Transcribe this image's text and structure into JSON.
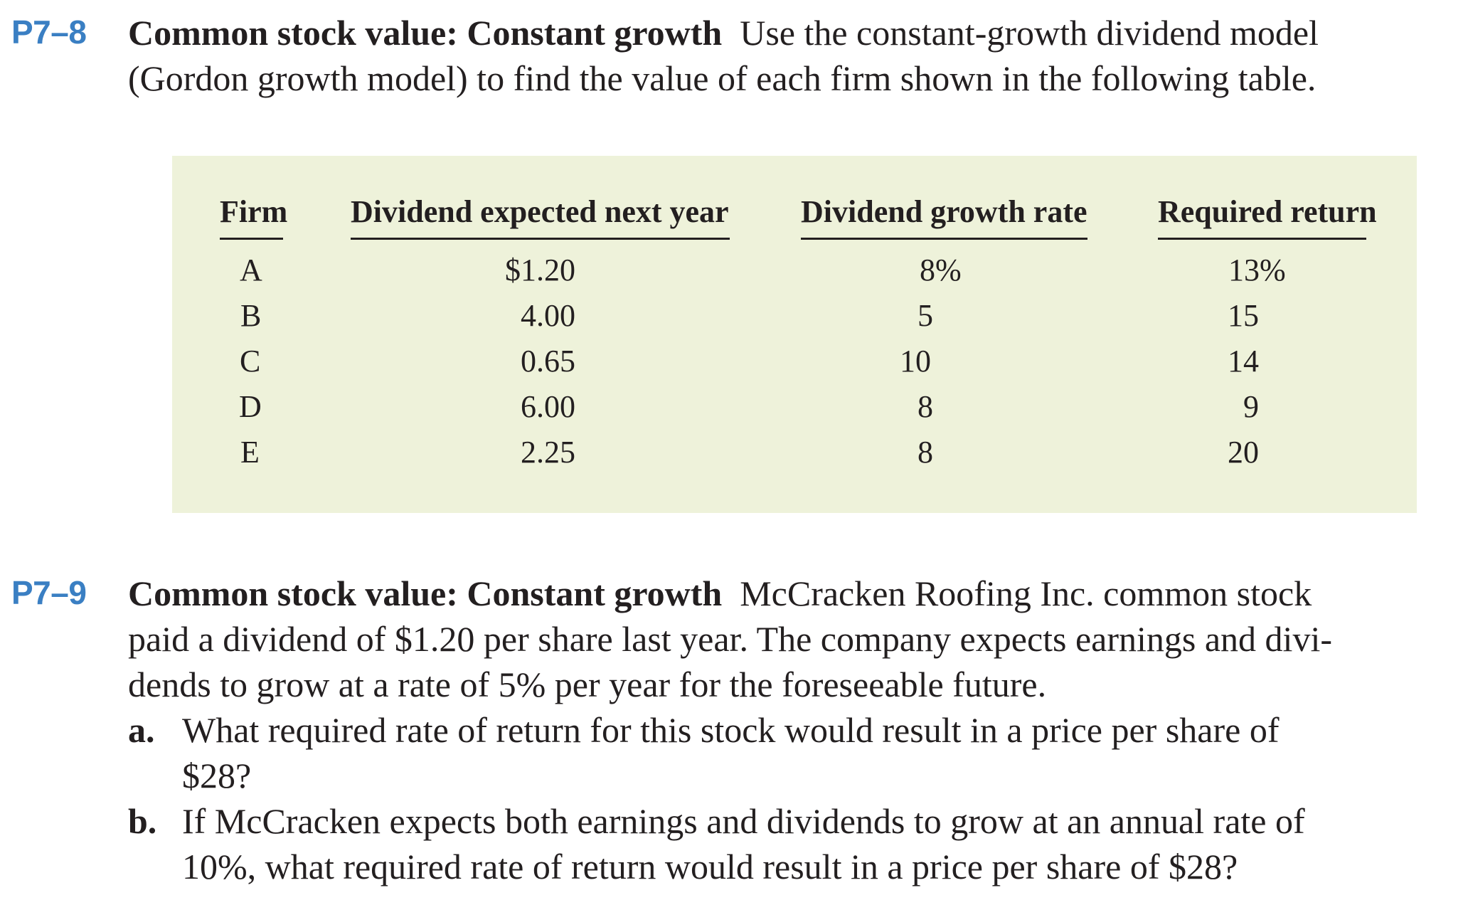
{
  "p78": {
    "number": "P7–8",
    "title": "Common stock value: Constant growth",
    "lines": [
      "Use the constant-growth dividend model",
      "(Gordon growth model) to find the value of each firm shown in the following table."
    ],
    "table": {
      "headers": [
        "Firm",
        "Dividend expected next year",
        "Dividend growth rate",
        "Required return"
      ],
      "rows": [
        [
          "A",
          "$1.20",
          "8%",
          "13%"
        ],
        [
          "B",
          "4.00",
          "5",
          "15"
        ],
        [
          "C",
          "0.65",
          "10",
          "14"
        ],
        [
          "D",
          "6.00",
          "8",
          "9"
        ],
        [
          "E",
          "2.25",
          "8",
          "20"
        ]
      ],
      "background": "#eef2da"
    }
  },
  "p79": {
    "number": "P7–9",
    "title": "Common stock value: Constant growth",
    "lines": [
      "McCracken Roofing Inc. common stock",
      "paid a dividend of $1.20 per share last year. The company expects earnings and divi-",
      "dends to grow at a rate of 5% per year for the foreseeable future."
    ],
    "questions": [
      {
        "letter": "a.",
        "lines": [
          "What required rate of return for this stock would result in a price per share of",
          "$28?"
        ]
      },
      {
        "letter": "b.",
        "lines": [
          "If McCracken expects both earnings and dividends to grow at an annual rate of",
          "10%, what required rate of return would result in a price per share of $28?"
        ]
      }
    ]
  },
  "colors": {
    "problem_number": "#3a7fc3",
    "text": "#231f20",
    "table_background": "#eef2da"
  }
}
